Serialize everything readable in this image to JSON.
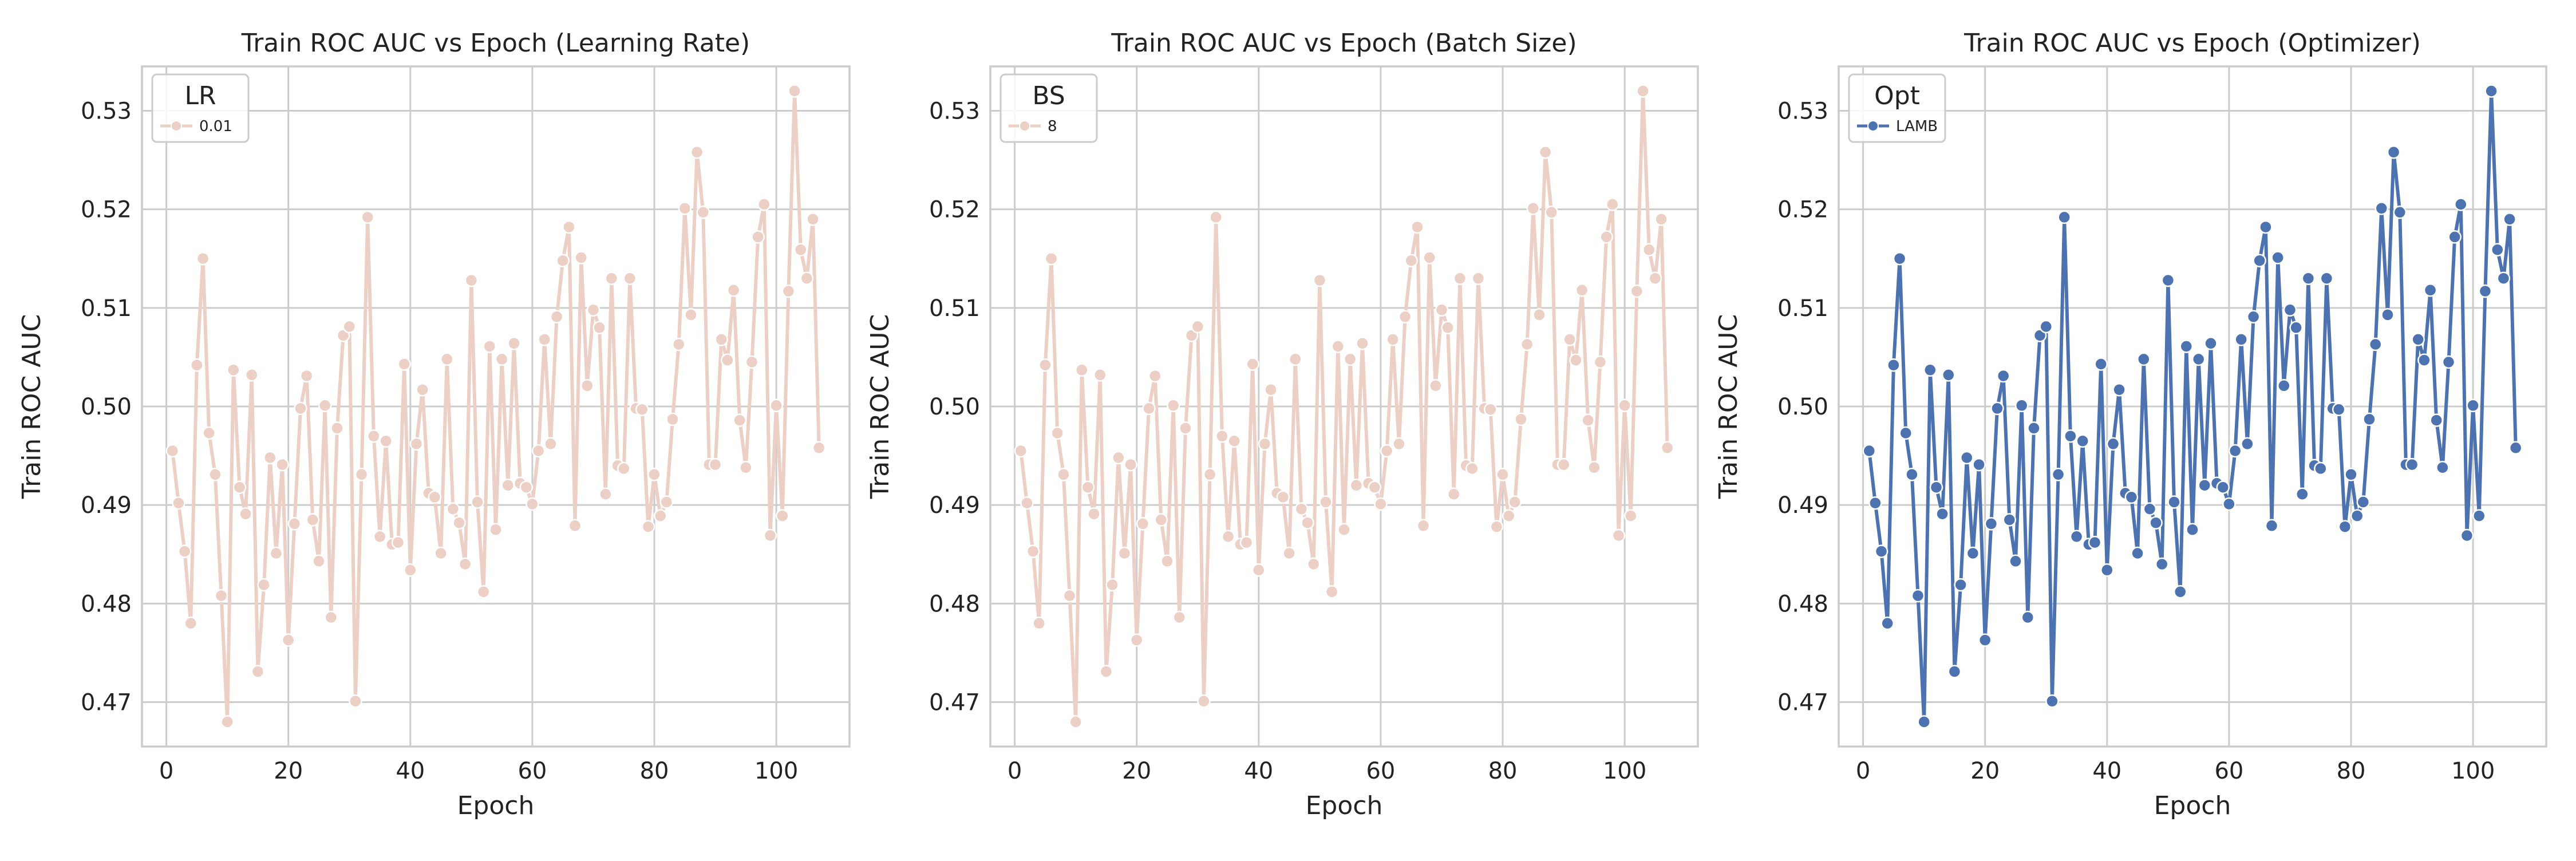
{
  "chart_data": [
    {
      "type": "line",
      "title": "Train ROC AUC vs Epoch (Learning Rate)",
      "xlabel": "Epoch",
      "ylabel": "Train ROC AUC",
      "xlim": [
        -4,
        112
      ],
      "ylim": [
        0.4655,
        0.5345
      ],
      "xticks": [
        0,
        20,
        40,
        60,
        80,
        100
      ],
      "yticks": [
        0.47,
        0.48,
        0.49,
        0.5,
        0.51,
        0.52,
        0.53
      ],
      "grid": true,
      "legend": {
        "title": "LR",
        "placement": "top-left"
      },
      "series": [
        {
          "name": "0.01",
          "color": "#eccfc5",
          "series_ref": "shared"
        }
      ]
    },
    {
      "type": "line",
      "title": "Train ROC AUC vs Epoch (Batch Size)",
      "xlabel": "Epoch",
      "ylabel": "Train ROC AUC",
      "xlim": [
        -4,
        112
      ],
      "ylim": [
        0.4655,
        0.5345
      ],
      "xticks": [
        0,
        20,
        40,
        60,
        80,
        100
      ],
      "yticks": [
        0.47,
        0.48,
        0.49,
        0.5,
        0.51,
        0.52,
        0.53
      ],
      "grid": true,
      "legend": {
        "title": "BS",
        "placement": "top-left"
      },
      "series": [
        {
          "name": "8",
          "color": "#eccfc5",
          "series_ref": "shared"
        }
      ]
    },
    {
      "type": "line",
      "title": "Train ROC AUC vs Epoch (Optimizer)",
      "xlabel": "Epoch",
      "ylabel": "Train ROC AUC",
      "xlim": [
        -4,
        112
      ],
      "ylim": [
        0.4655,
        0.5345
      ],
      "xticks": [
        0,
        20,
        40,
        60,
        80,
        100
      ],
      "yticks": [
        0.47,
        0.48,
        0.49,
        0.5,
        0.51,
        0.52,
        0.53
      ],
      "grid": true,
      "legend": {
        "title": "Opt",
        "placement": "top-left"
      },
      "series": [
        {
          "name": "LAMB",
          "color": "#4c72b0",
          "series_ref": "shared"
        }
      ]
    }
  ],
  "shared_series": {
    "x": [
      1,
      2,
      3,
      4,
      5,
      6,
      7,
      8,
      9,
      10,
      11,
      12,
      13,
      14,
      15,
      16,
      17,
      18,
      19,
      20,
      21,
      22,
      23,
      24,
      25,
      26,
      27,
      28,
      29,
      30,
      31,
      32,
      33,
      34,
      35,
      36,
      37,
      38,
      39,
      40,
      41,
      42,
      43,
      44,
      45,
      46,
      47,
      48,
      49,
      50,
      51,
      52,
      53,
      54,
      55,
      56,
      57,
      58,
      59,
      60,
      61,
      62,
      63,
      64,
      65,
      66,
      67,
      68,
      69,
      70,
      71,
      72,
      73,
      74,
      75,
      76,
      77,
      78,
      79,
      80,
      81,
      82,
      83,
      84,
      85,
      86,
      87,
      88,
      89,
      90,
      91,
      92,
      93,
      94,
      95,
      96,
      97,
      98,
      99,
      100,
      101,
      102,
      103,
      104,
      105,
      106,
      107
    ],
    "y": [
      0.4955,
      0.4902,
      0.4853,
      0.478,
      0.5042,
      0.515,
      0.4973,
      0.4931,
      0.4808,
      0.468,
      0.5037,
      0.4918,
      0.4891,
      0.5032,
      0.4731,
      0.4819,
      0.4948,
      0.4851,
      0.4941,
      0.4763,
      0.4881,
      0.4998,
      0.5031,
      0.4885,
      0.4843,
      0.5001,
      0.4786,
      0.4978,
      0.5072,
      0.5081,
      0.4701,
      0.4931,
      0.5192,
      0.497,
      0.4868,
      0.4965,
      0.486,
      0.4862,
      0.5043,
      0.4834,
      0.4962,
      0.5017,
      0.4912,
      0.4908,
      0.4851,
      0.5048,
      0.4896,
      0.4882,
      0.484,
      0.5128,
      0.4903,
      0.4812,
      0.5061,
      0.4875,
      0.5048,
      0.492,
      0.5064,
      0.4922,
      0.4918,
      0.4901,
      0.4955,
      0.5068,
      0.4962,
      0.5091,
      0.5148,
      0.5182,
      0.4879,
      0.5151,
      0.5021,
      0.5098,
      0.508,
      0.4911,
      0.513,
      0.494,
      0.4937,
      0.513,
      0.4998,
      0.4997,
      0.4878,
      0.4931,
      0.4889,
      0.4903,
      0.4987,
      0.5063,
      0.5201,
      0.5093,
      0.5258,
      0.5197,
      0.4941,
      0.4941,
      0.5068,
      0.5047,
      0.5118,
      0.4986,
      0.4938,
      0.5045,
      0.5172,
      0.5205,
      0.4869,
      0.5001,
      0.4889,
      0.5117,
      0.532,
      0.5159,
      0.513,
      0.519,
      0.4958
    ]
  }
}
